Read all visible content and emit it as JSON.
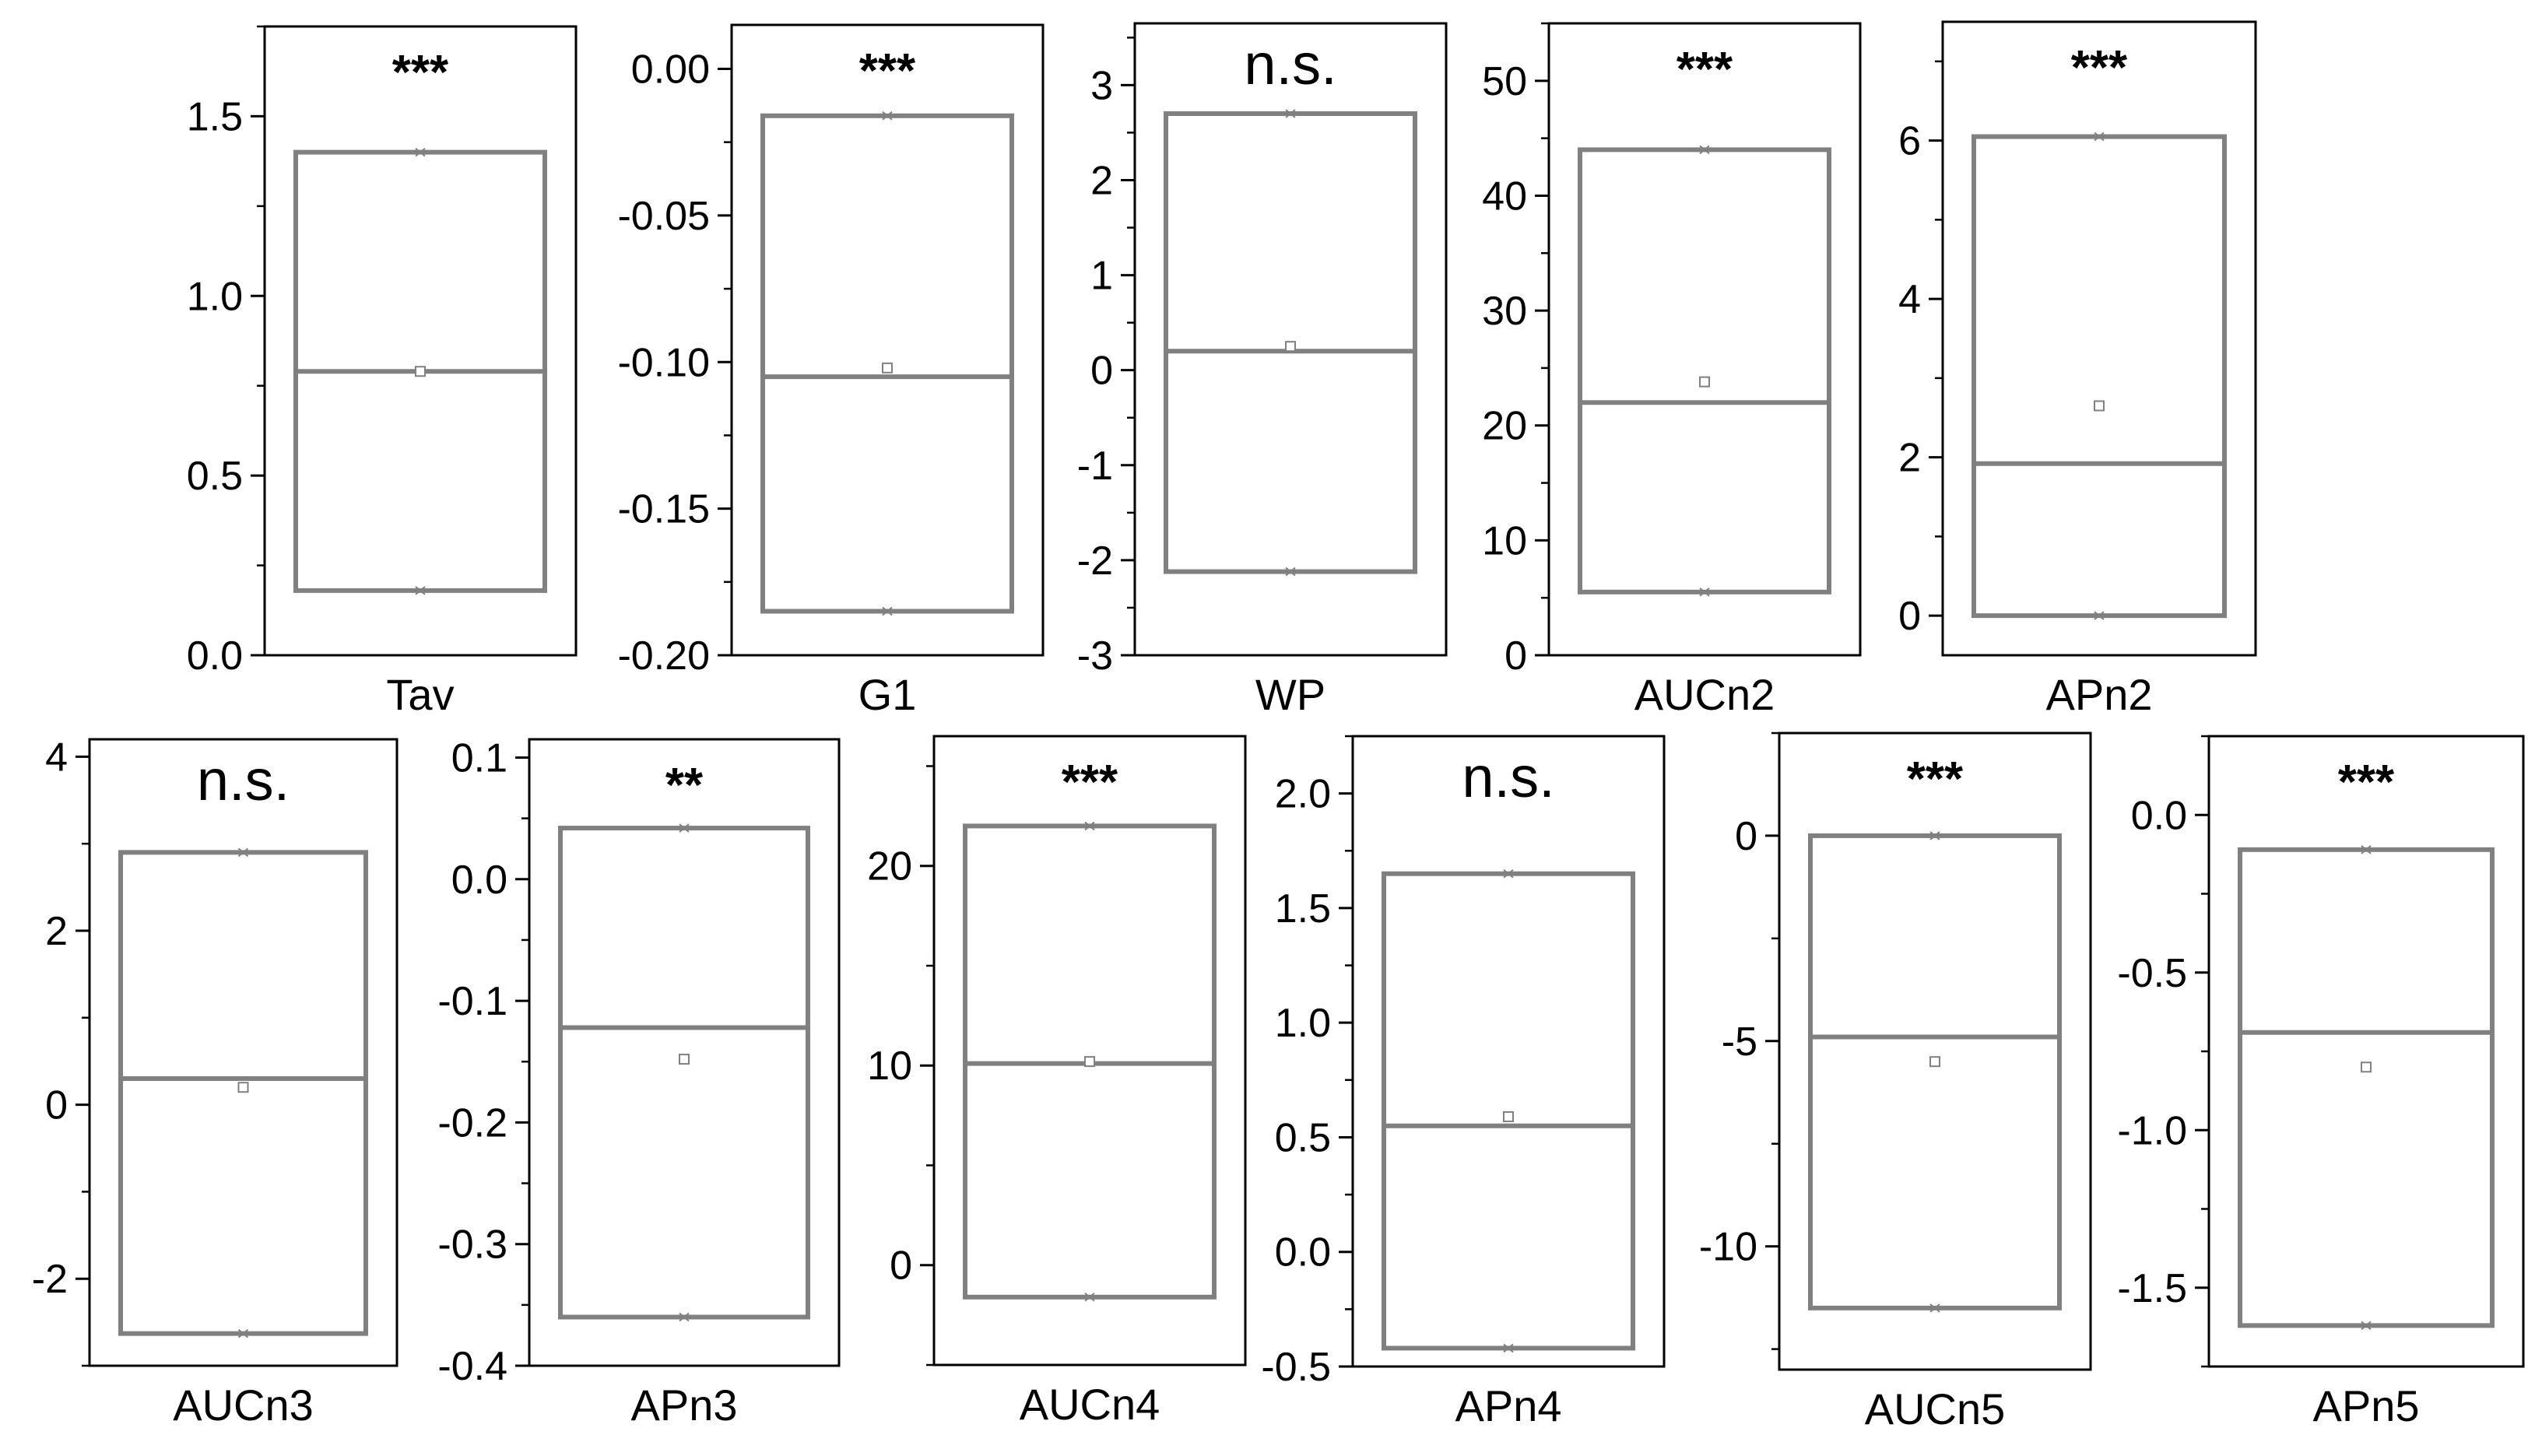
{
  "chart_data": [
    {
      "type": "box",
      "xlabel": "Tav",
      "significance": "***",
      "ylim": [
        0.0,
        1.75
      ],
      "yticks": [
        "0.0",
        "0.5",
        "1.0",
        "1.5"
      ],
      "ytick_values": [
        0,
        0.5,
        1.0,
        1.5
      ],
      "minor_step": 0.25,
      "box": {
        "low": 0.18,
        "high": 1.4,
        "median": 0.79,
        "mean": 0.79
      }
    },
    {
      "type": "box",
      "xlabel": "G1",
      "significance": "***",
      "ylim": [
        -0.2,
        0.015
      ],
      "yticks": [
        "-0.20",
        "-0.15",
        "-0.10",
        "-0.05",
        "0.00"
      ],
      "ytick_values": [
        -0.2,
        -0.15,
        -0.1,
        -0.05,
        0.0
      ],
      "minor_step": 0.025,
      "box": {
        "low": -0.185,
        "high": -0.016,
        "median": -0.105,
        "mean": -0.102
      }
    },
    {
      "type": "box",
      "xlabel": "WP",
      "significance": "n.s.",
      "ylim": [
        -3,
        3.65
      ],
      "yticks": [
        "-3",
        "-2",
        "-1",
        "0",
        "1",
        "2",
        "3"
      ],
      "ytick_values": [
        -3,
        -2,
        -1,
        0,
        1,
        2,
        3
      ],
      "minor_step": 0.5,
      "box": {
        "low": -2.12,
        "high": 2.7,
        "median": 0.2,
        "mean": 0.25
      }
    },
    {
      "type": "box",
      "xlabel": "AUCn2",
      "significance": "***",
      "ylim": [
        0,
        55
      ],
      "yticks": [
        "0",
        "10",
        "20",
        "30",
        "40",
        "50"
      ],
      "ytick_values": [
        0,
        10,
        20,
        30,
        40,
        50
      ],
      "minor_step": 5,
      "box": {
        "low": 5.5,
        "high": 44,
        "median": 22,
        "mean": 23.8
      }
    },
    {
      "type": "box",
      "xlabel": "APn2",
      "significance": "***",
      "ylim": [
        -0.5,
        7.5
      ],
      "yticks": [
        "0",
        "2",
        "4",
        "6"
      ],
      "ytick_values": [
        0,
        2,
        4,
        6
      ],
      "minor_step": 1,
      "box": {
        "low": 0,
        "high": 6.05,
        "median": 1.92,
        "mean": 2.65
      }
    },
    {
      "type": "box",
      "xlabel": "AUCn3",
      "significance": "n.s.",
      "ylim": [
        -3,
        4.2
      ],
      "yticks": [
        "-2",
        "0",
        "2",
        "4"
      ],
      "ytick_values": [
        -2,
        0,
        2,
        4
      ],
      "minor_step": 1,
      "box": {
        "low": -2.63,
        "high": 2.9,
        "median": 0.3,
        "mean": 0.2
      }
    },
    {
      "type": "box",
      "xlabel": "APn3",
      "significance": "**",
      "ylim": [
        -0.4,
        0.115
      ],
      "yticks": [
        "-0.4",
        "-0.3",
        "-0.2",
        "-0.1",
        "0.0",
        "0.1"
      ],
      "ytick_values": [
        -0.4,
        -0.3,
        -0.2,
        -0.1,
        0.0,
        0.1
      ],
      "minor_step": 0.05,
      "box": {
        "low": -0.36,
        "high": 0.042,
        "median": -0.122,
        "mean": -0.148
      }
    },
    {
      "type": "box",
      "xlabel": "AUCn4",
      "significance": "***",
      "ylim": [
        -5,
        26.5
      ],
      "yticks": [
        "0",
        "10",
        "20"
      ],
      "ytick_values": [
        0,
        10,
        20
      ],
      "minor_step": 5,
      "box": {
        "low": -1.6,
        "high": 22,
        "median": 10.1,
        "mean": 10.2
      }
    },
    {
      "type": "box",
      "xlabel": "APn4",
      "significance": "n.s.",
      "ylim": [
        -0.5,
        2.25
      ],
      "yticks": [
        "-0.5",
        "0.0",
        "0.5",
        "1.0",
        "1.5",
        "2.0"
      ],
      "ytick_values": [
        -0.5,
        0.0,
        0.5,
        1.0,
        1.5,
        2.0
      ],
      "minor_step": 0.25,
      "box": {
        "low": -0.42,
        "high": 1.65,
        "median": 0.55,
        "mean": 0.59
      }
    },
    {
      "type": "box",
      "xlabel": "AUCn5",
      "significance": "***",
      "ylim": [
        -13,
        2.5
      ],
      "yticks": [
        "-10",
        "-5",
        "0"
      ],
      "ytick_values": [
        -10,
        -5,
        0
      ],
      "minor_step": 2.5,
      "box": {
        "low": -11.5,
        "high": 0,
        "median": -4.9,
        "mean": -5.5
      }
    },
    {
      "type": "box",
      "xlabel": "APn5",
      "significance": "***",
      "ylim": [
        -1.75,
        0.25
      ],
      "yticks": [
        "-1.5",
        "-1.0",
        "-0.5",
        "0.0"
      ],
      "ytick_values": [
        -1.5,
        -1.0,
        -0.5,
        0.0
      ],
      "minor_step": 0.25,
      "box": {
        "low": -1.62,
        "high": -0.11,
        "median": -0.69,
        "mean": -0.8
      }
    }
  ]
}
